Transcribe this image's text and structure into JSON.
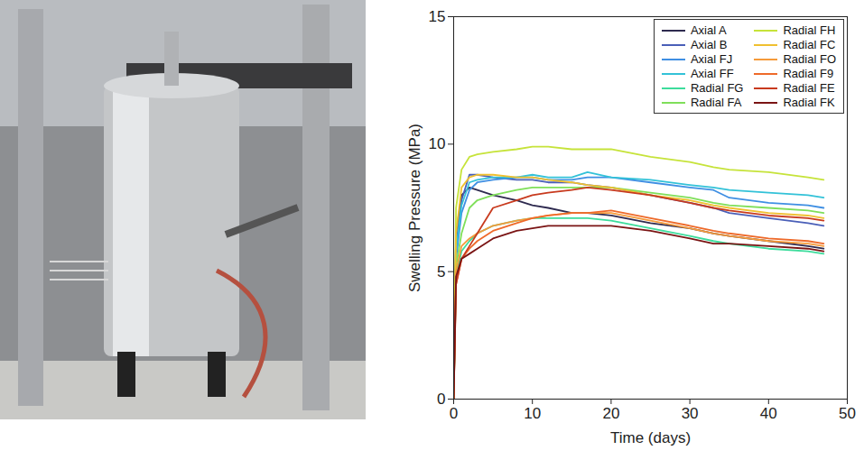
{
  "chart_data": {
    "type": "line",
    "xlabel": "Time (days)",
    "ylabel": "Swelling Pressure (MPa)",
    "xlim": [
      0,
      50
    ],
    "xticks": [
      0,
      10,
      20,
      30,
      40,
      50
    ],
    "ylim": [
      0,
      15
    ],
    "yticks": [
      0,
      5,
      10,
      15
    ],
    "grid": false,
    "legend": "upper right",
    "x": [
      0,
      0.3,
      1,
      2,
      3,
      5,
      8,
      10,
      12,
      15,
      17,
      20,
      25,
      30,
      33,
      35,
      40,
      45,
      47
    ],
    "series": [
      {
        "name": "Axial A",
        "color": "#2e2a4f",
        "values": [
          0,
          6.5,
          8.0,
          8.3,
          8.2,
          8.0,
          7.8,
          7.6,
          7.5,
          7.3,
          7.3,
          7.2,
          6.9,
          6.7,
          6.5,
          6.4,
          6.2,
          6.0,
          5.9
        ]
      },
      {
        "name": "Axial B",
        "color": "#4a5fb8",
        "values": [
          0,
          6.0,
          7.8,
          8.8,
          8.8,
          8.7,
          8.6,
          8.6,
          8.5,
          8.5,
          8.4,
          8.3,
          8.0,
          7.7,
          7.5,
          7.3,
          7.1,
          6.9,
          6.8
        ]
      },
      {
        "name": "Axial FJ",
        "color": "#3f8fe3",
        "values": [
          0,
          5.5,
          7.3,
          8.2,
          8.5,
          8.6,
          8.7,
          8.7,
          8.6,
          8.6,
          8.7,
          8.7,
          8.5,
          8.3,
          8.2,
          7.9,
          7.7,
          7.6,
          7.5
        ]
      },
      {
        "name": "Axial FF",
        "color": "#33c2d8",
        "values": [
          0,
          5.8,
          7.6,
          8.5,
          8.6,
          8.7,
          8.7,
          8.8,
          8.7,
          8.7,
          8.9,
          8.7,
          8.6,
          8.4,
          8.3,
          8.2,
          8.1,
          8.0,
          7.9
        ]
      },
      {
        "name": "Radial FG",
        "color": "#3ddc9c",
        "values": [
          0,
          4.8,
          5.8,
          6.2,
          6.5,
          6.8,
          7.0,
          7.1,
          7.1,
          7.1,
          7.1,
          7.0,
          6.7,
          6.4,
          6.2,
          6.1,
          5.9,
          5.8,
          5.7
        ]
      },
      {
        "name": "Radial FA",
        "color": "#7fdf5a",
        "values": [
          0,
          5.2,
          6.5,
          7.5,
          7.8,
          8.0,
          8.2,
          8.3,
          8.3,
          8.3,
          8.3,
          8.3,
          8.1,
          7.9,
          7.7,
          7.6,
          7.5,
          7.4,
          7.3
        ]
      },
      {
        "name": "Radial FH",
        "color": "#c6e33a",
        "values": [
          0,
          7.5,
          9.0,
          9.5,
          9.6,
          9.7,
          9.8,
          9.9,
          9.9,
          9.8,
          9.8,
          9.8,
          9.5,
          9.3,
          9.1,
          9.0,
          8.9,
          8.7,
          8.6
        ]
      },
      {
        "name": "Radial FC",
        "color": "#f0c030",
        "values": [
          0,
          6.5,
          8.3,
          8.7,
          8.8,
          8.8,
          8.7,
          8.7,
          8.6,
          8.5,
          8.4,
          8.3,
          8.0,
          7.8,
          7.6,
          7.5,
          7.3,
          7.2,
          7.1
        ]
      },
      {
        "name": "Radial FO",
        "color": "#f59a3a",
        "values": [
          0,
          5.0,
          6.0,
          6.3,
          6.5,
          6.8,
          7.0,
          7.1,
          7.2,
          7.3,
          7.3,
          7.3,
          7.0,
          6.7,
          6.5,
          6.4,
          6.2,
          6.1,
          6.0
        ]
      },
      {
        "name": "Radial F9",
        "color": "#ee6a2a",
        "values": [
          0,
          4.5,
          5.5,
          5.9,
          6.2,
          6.6,
          6.9,
          7.1,
          7.2,
          7.3,
          7.3,
          7.4,
          7.1,
          6.8,
          6.6,
          6.5,
          6.3,
          6.2,
          6.1
        ]
      },
      {
        "name": "Radial FE",
        "color": "#c83a1e",
        "values": [
          0,
          4.5,
          5.5,
          6.0,
          6.5,
          7.5,
          7.8,
          8.0,
          8.1,
          8.2,
          8.3,
          8.2,
          8.0,
          7.7,
          7.5,
          7.4,
          7.2,
          7.1,
          7.0
        ]
      },
      {
        "name": "Radial FK",
        "color": "#7a1414",
        "values": [
          0,
          4.8,
          5.5,
          5.7,
          5.9,
          6.3,
          6.6,
          6.7,
          6.8,
          6.8,
          6.8,
          6.8,
          6.6,
          6.3,
          6.1,
          6.1,
          6.0,
          5.9,
          5.8
        ]
      }
    ]
  }
}
